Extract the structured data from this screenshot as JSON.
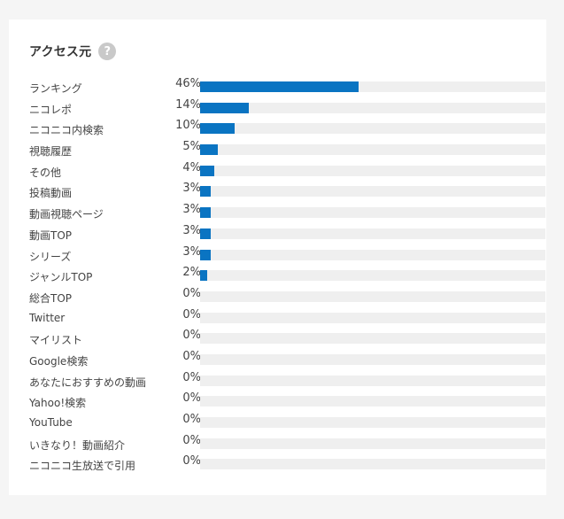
{
  "header": {
    "title": "アクセス元",
    "help_icon": "help-icon"
  },
  "colors": {
    "bar_fill": "#0a74c2",
    "bar_track": "#efefef",
    "card_bg": "#ffffff",
    "page_bg": "#f5f5f5"
  },
  "sources": [
    {
      "label": "ランキング",
      "percent": "46%",
      "value": 46
    },
    {
      "label": "ニコレポ",
      "percent": "14%",
      "value": 14
    },
    {
      "label": "ニコニコ内検索",
      "percent": "10%",
      "value": 10
    },
    {
      "label": "視聴履歴",
      "percent": "5%",
      "value": 5
    },
    {
      "label": "その他",
      "percent": "4%",
      "value": 4
    },
    {
      "label": "投稿動画",
      "percent": "3%",
      "value": 3
    },
    {
      "label": "動画視聴ページ",
      "percent": "3%",
      "value": 3
    },
    {
      "label": "動画TOP",
      "percent": "3%",
      "value": 3
    },
    {
      "label": "シリーズ",
      "percent": "3%",
      "value": 3
    },
    {
      "label": "ジャンルTOP",
      "percent": "2%",
      "value": 2
    },
    {
      "label": "総合TOP",
      "percent": "0%",
      "value": 0
    },
    {
      "label": "Twitter",
      "percent": "0%",
      "value": 0
    },
    {
      "label": "マイリスト",
      "percent": "0%",
      "value": 0
    },
    {
      "label": "Google検索",
      "percent": "0%",
      "value": 0
    },
    {
      "label": "あなたにおすすめの動画",
      "percent": "0%",
      "value": 0
    },
    {
      "label": "Yahoo!検索",
      "percent": "0%",
      "value": 0
    },
    {
      "label": "YouTube",
      "percent": "0%",
      "value": 0
    },
    {
      "label": "いきなり！動画紹介",
      "percent": "0%",
      "value": 0
    },
    {
      "label": "ニコニコ生放送で引用",
      "percent": "0%",
      "value": 0
    }
  ]
}
